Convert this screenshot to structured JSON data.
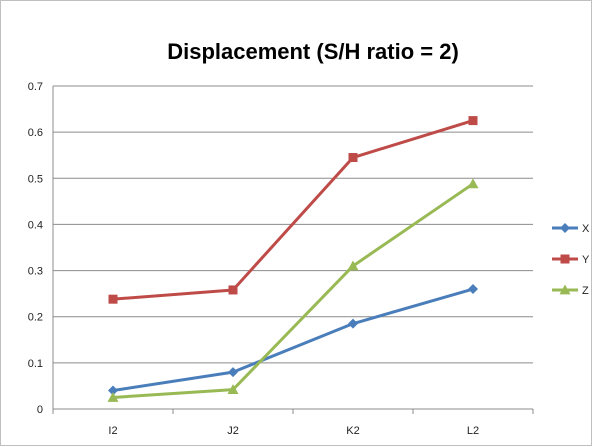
{
  "chart_data": {
    "type": "line",
    "title": "Displacement (S/H ratio = 2)",
    "xlabel": "",
    "ylabel": "",
    "categories": [
      "I2",
      "J2",
      "K2",
      "L2"
    ],
    "ylim": [
      0,
      0.7
    ],
    "yticks": [
      "0",
      "0.1",
      "0.2",
      "0.3",
      "0.4",
      "0.5",
      "0.6",
      "0.7"
    ],
    "grid": true,
    "legend_position": "right",
    "series": [
      {
        "name": "X",
        "color": "#4a7ebb",
        "marker": "diamond",
        "values": [
          0.04,
          0.08,
          0.185,
          0.26
        ]
      },
      {
        "name": "Y",
        "color": "#be4b48",
        "marker": "square",
        "values": [
          0.238,
          0.258,
          0.545,
          0.625
        ]
      },
      {
        "name": "Z",
        "color": "#98b954",
        "marker": "triangle",
        "values": [
          0.025,
          0.042,
          0.31,
          0.488
        ]
      }
    ]
  }
}
